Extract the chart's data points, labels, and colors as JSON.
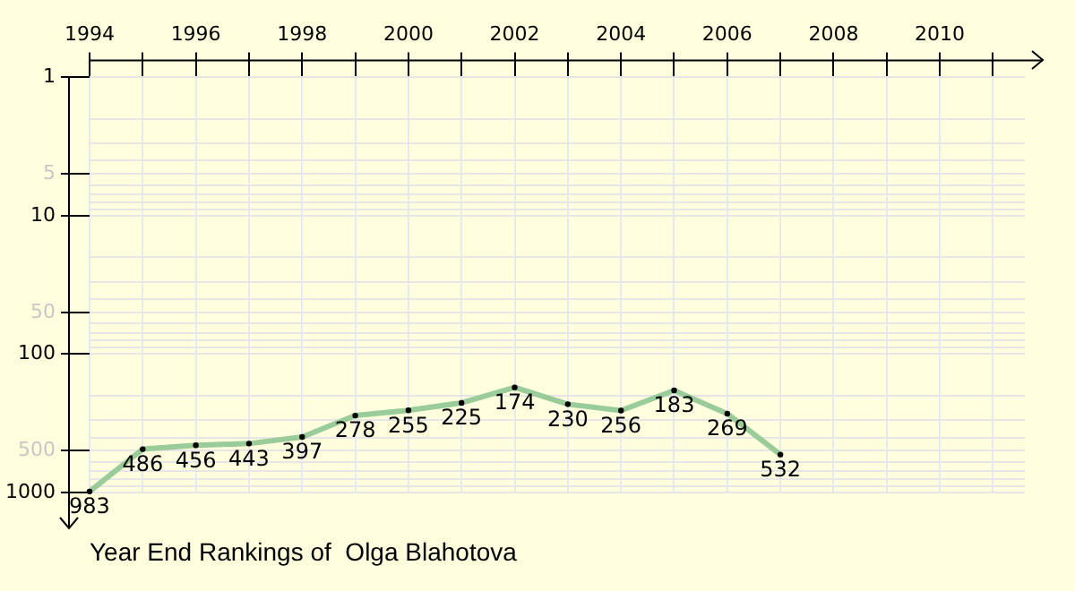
{
  "chart_data": {
    "type": "line",
    "title": "Year End Rankings of  Olga Blahotova",
    "x": [
      1994,
      1995,
      1996,
      1997,
      1998,
      1999,
      2000,
      2001,
      2002,
      2003,
      2004,
      2005,
      2006,
      2007
    ],
    "series": [
      {
        "color": "#99cc99",
        "values": [
          983,
          486,
          456,
          443,
          397,
          278,
          255,
          225,
          174,
          230,
          256,
          183,
          269,
          532
        ]
      }
    ],
    "xlim": [
      1994,
      2011.6
    ],
    "xticks": [
      1994,
      {
        "value": 1995,
        "label": null
      },
      1996,
      {
        "value": 1997,
        "label": null
      },
      1998,
      {
        "value": 1999,
        "label": null
      },
      2000,
      {
        "value": 2001,
        "label": null
      },
      2002,
      {
        "value": 2003,
        "label": null
      },
      2004,
      {
        "value": 2005,
        "label": null
      },
      2006,
      {
        "value": 2007,
        "label": null
      },
      2008,
      {
        "value": 2009,
        "label": null
      },
      2010,
      {
        "value": 2011,
        "label": null
      }
    ],
    "ylim": [
      1000,
      1
    ],
    "yticks": [
      1,
      {
        "value": 2,
        "label": null
      },
      {
        "value": 3,
        "label": null
      },
      {
        "value": 4,
        "label": null
      },
      5,
      {
        "value": 6,
        "label": null
      },
      {
        "value": 7,
        "label": null
      },
      {
        "value": 8,
        "label": null
      },
      {
        "value": 9,
        "label": null
      },
      10,
      {
        "value": 20,
        "label": null
      },
      {
        "value": 30,
        "label": null
      },
      {
        "value": 40,
        "label": null
      },
      50,
      {
        "value": 60,
        "label": null
      },
      {
        "value": 70,
        "label": null
      },
      {
        "value": 80,
        "label": null
      },
      {
        "value": 90,
        "label": null
      },
      100,
      {
        "value": 200,
        "label": null
      },
      {
        "value": 300,
        "label": null
      },
      {
        "value": 400,
        "label": null
      },
      500,
      {
        "value": 600,
        "label": null
      },
      {
        "value": 700,
        "label": null
      },
      {
        "value": 800,
        "label": null
      },
      {
        "value": 900,
        "label": null
      },
      1000
    ],
    "log": "y",
    "grid": true,
    "marker": "circle",
    "line_style": "solid",
    "data_labels": true,
    "legend": false
  }
}
